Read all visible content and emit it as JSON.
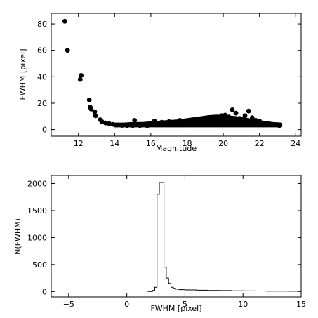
{
  "chart_data": [
    {
      "type": "scatter",
      "xlabel": "Magnitude",
      "ylabel": "FWHM [pixel]",
      "xlim": [
        10.5,
        24.3
      ],
      "ylim": [
        -5,
        88
      ],
      "xticks": [
        12,
        14,
        16,
        18,
        20,
        22,
        24
      ],
      "yticks": [
        0,
        20,
        40,
        60,
        80
      ],
      "grid": false,
      "marker_color": "#000000",
      "points": [
        [
          11.25,
          82
        ],
        [
          11.4,
          60
        ],
        [
          12.1,
          38
        ],
        [
          12.15,
          41
        ],
        [
          12.6,
          22.5
        ],
        [
          12.65,
          17
        ],
        [
          12.7,
          15.5
        ],
        [
          12.9,
          13.5
        ],
        [
          12.95,
          10.5
        ],
        [
          13.2,
          7.5
        ],
        [
          13.3,
          6.0
        ],
        [
          13.5,
          5.0
        ],
        [
          13.7,
          4.5
        ],
        [
          13.9,
          4.0
        ],
        [
          14.1,
          3.5
        ],
        [
          14.4,
          3.2
        ],
        [
          14.7,
          3.0
        ],
        [
          15.0,
          3.0
        ],
        [
          15.1,
          7.0
        ],
        [
          15.4,
          3.0
        ],
        [
          15.8,
          2.9
        ],
        [
          16.2,
          6.5
        ],
        [
          16.6,
          5.5
        ],
        [
          17.0,
          6.0
        ],
        [
          17.4,
          3.5
        ],
        [
          17.6,
          7.0
        ],
        [
          18.0,
          4.0
        ],
        [
          18.2,
          6.5
        ],
        [
          18.5,
          5.0
        ],
        [
          18.8,
          6.5
        ],
        [
          19.1,
          7.5
        ],
        [
          19.4,
          8.0
        ],
        [
          19.7,
          9.0
        ],
        [
          19.9,
          10.5
        ],
        [
          20.1,
          11.0
        ],
        [
          20.3,
          9.5
        ],
        [
          20.5,
          15.0
        ],
        [
          20.7,
          12.5
        ],
        [
          20.9,
          8.5
        ],
        [
          21.2,
          10.5
        ],
        [
          21.4,
          14.0
        ],
        [
          21.6,
          9.0
        ],
        [
          21.8,
          7.0
        ],
        [
          22.0,
          6.5
        ],
        [
          22.2,
          5.0
        ],
        [
          22.5,
          4.5
        ],
        [
          22.7,
          4.0
        ],
        [
          23.0,
          3.5
        ],
        [
          23.1,
          3.0
        ]
      ],
      "band": {
        "x_start": 14.0,
        "x_end": 23.2,
        "y_base": 2.5,
        "y_tops": [
          4.5,
          4.5,
          5.0,
          5.0,
          5.5,
          6.0,
          6.5,
          7.0,
          8.0,
          9.0,
          10.0,
          10.5,
          10.0,
          9.5,
          8.5,
          7.0,
          6.0,
          5.0,
          4.5
        ]
      }
    },
    {
      "type": "step",
      "xlabel": "FWHM [pixel]",
      "ylabel": "N(FWHM)",
      "xlim": [
        -6.5,
        15
      ],
      "ylim": [
        -100,
        2150
      ],
      "xticks": [
        -5,
        0,
        5,
        10,
        15
      ],
      "yticks": [
        0,
        500,
        1000,
        1500,
        2000
      ],
      "grid": false,
      "x": [
        1.8,
        2.0,
        2.2,
        2.4,
        2.6,
        2.8,
        3.0,
        3.2,
        3.4,
        3.6,
        3.8,
        4.0,
        4.2,
        4.5,
        5.0,
        6.0,
        7.0,
        8.0,
        9.0,
        10.0,
        11.0,
        12.0,
        13.0,
        14.0,
        15.0
      ],
      "values": [
        0,
        0,
        20,
        80,
        1800,
        2020,
        2020,
        450,
        250,
        150,
        80,
        60,
        45,
        35,
        30,
        25,
        20,
        18,
        15,
        12,
        10,
        8,
        8,
        5,
        5
      ]
    }
  ]
}
